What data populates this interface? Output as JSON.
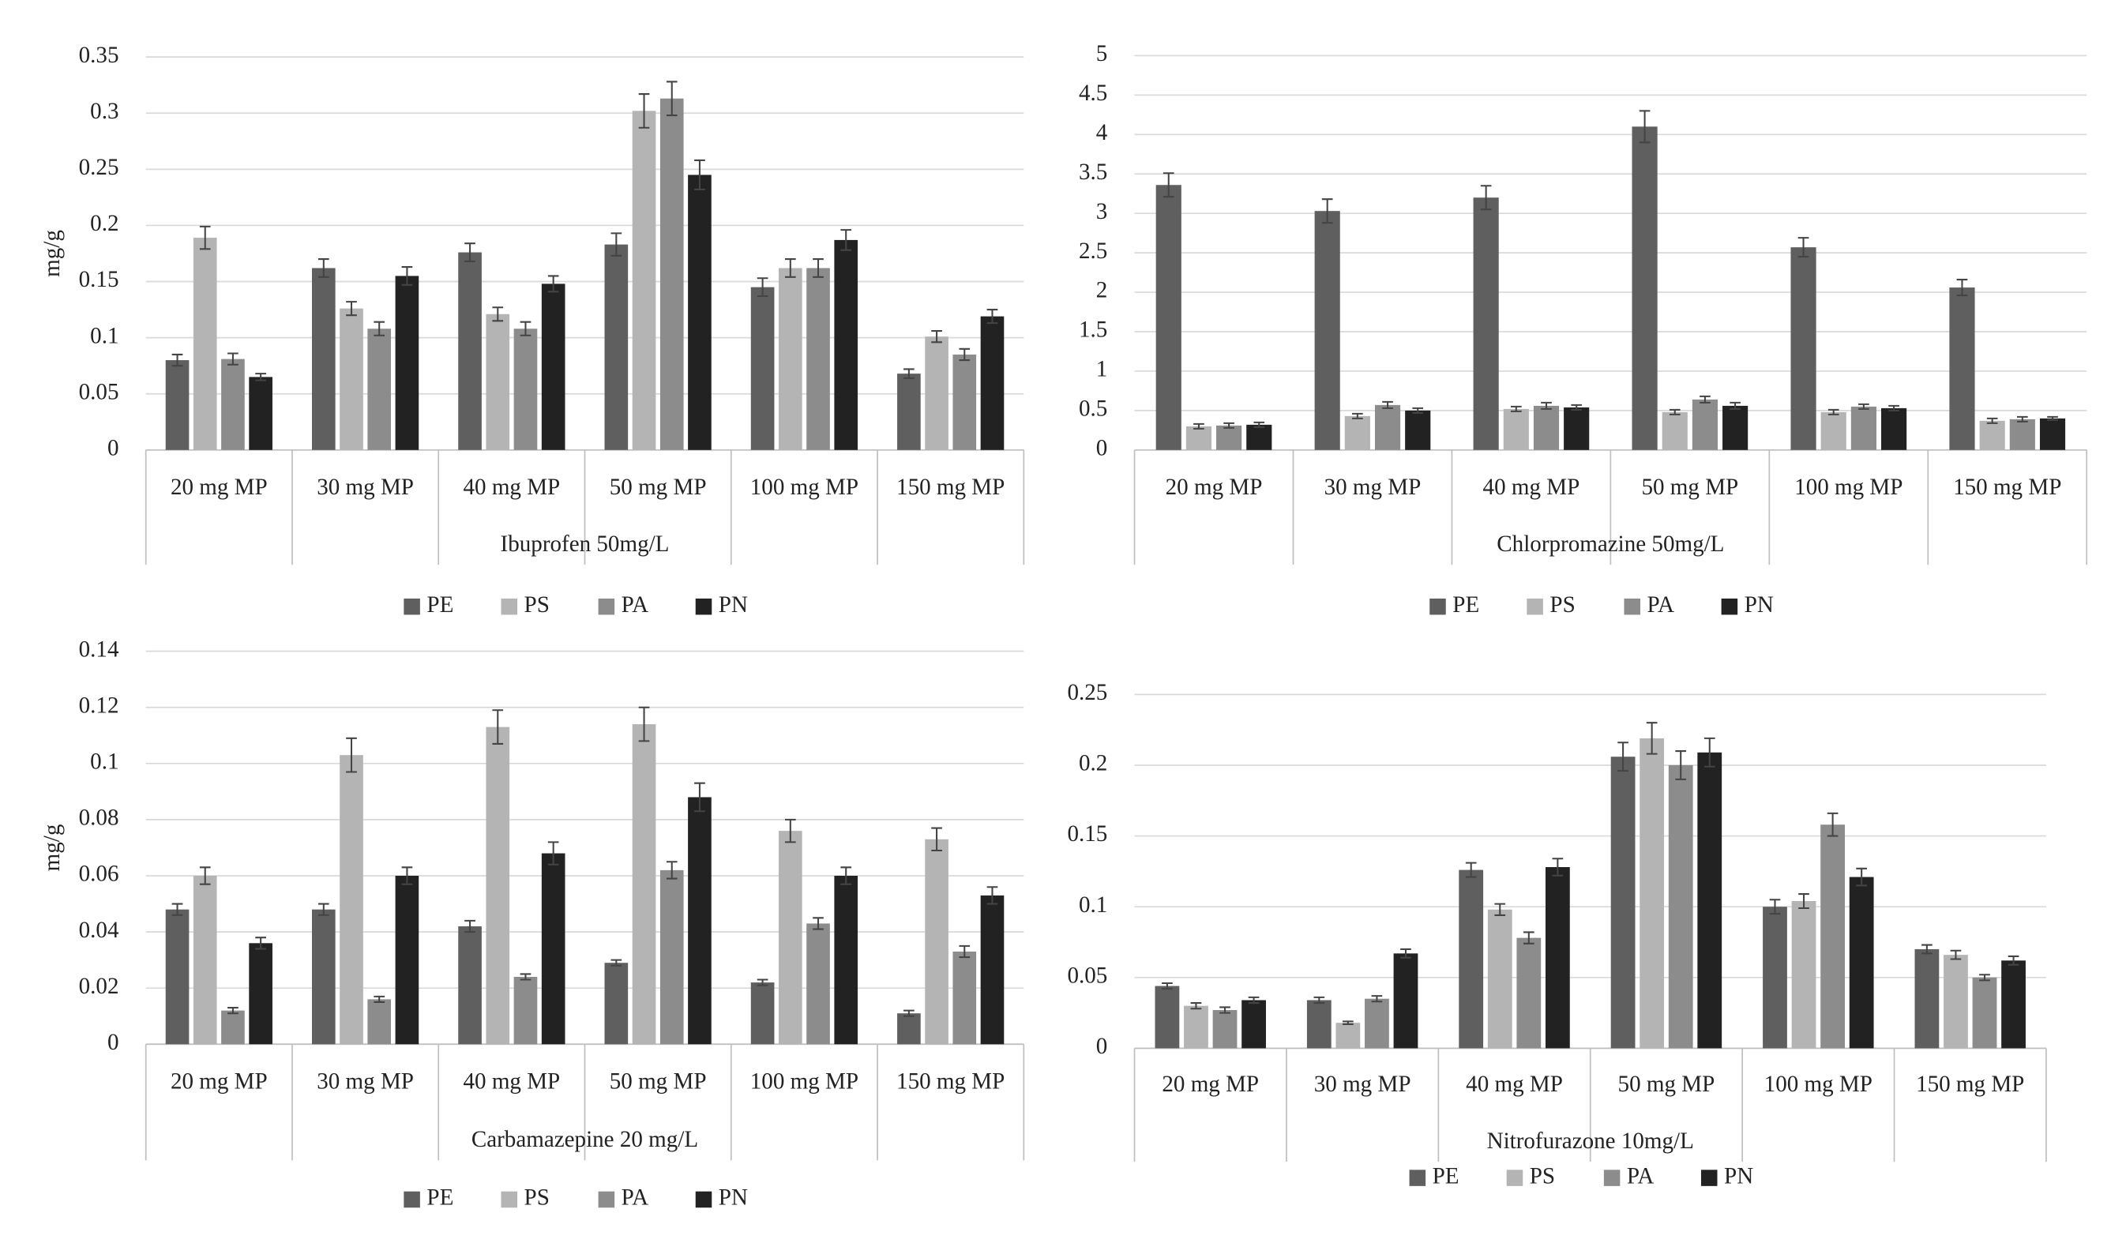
{
  "chart_data": [
    {
      "type": "bar",
      "x_label": "Ibuprofen 50mg/L",
      "y_label": "mg/g",
      "categories": [
        "20 mg MP",
        "30 mg MP",
        "40 mg MP",
        "50 mg MP",
        "100 mg MP",
        "150 mg MP"
      ],
      "ylim": [
        0,
        0.35
      ],
      "yticks": [
        0,
        0.05,
        0.1,
        0.15,
        0.2,
        0.25,
        0.3,
        0.35
      ],
      "grid": true,
      "legend": "bottom",
      "series": [
        {
          "name": "PE",
          "color": "#5f5f5f",
          "values": [
            0.08,
            0.162,
            0.176,
            0.183,
            0.145,
            0.068
          ],
          "errors": [
            0.005,
            0.008,
            0.008,
            0.01,
            0.008,
            0.004
          ]
        },
        {
          "name": "PS",
          "color": "#b4b4b4",
          "values": [
            0.189,
            0.126,
            0.121,
            0.302,
            0.162,
            0.101
          ],
          "errors": [
            0.01,
            0.006,
            0.006,
            0.015,
            0.008,
            0.005
          ]
        },
        {
          "name": "PA",
          "color": "#8c8c8c",
          "values": [
            0.081,
            0.108,
            0.108,
            0.313,
            0.162,
            0.085
          ],
          "errors": [
            0.005,
            0.006,
            0.006,
            0.015,
            0.008,
            0.005
          ]
        },
        {
          "name": "PN",
          "color": "#222222",
          "values": [
            0.065,
            0.155,
            0.148,
            0.245,
            0.187,
            0.119
          ],
          "errors": [
            0.003,
            0.008,
            0.007,
            0.013,
            0.009,
            0.006
          ]
        }
      ]
    },
    {
      "type": "bar",
      "x_label": "Chlorpromazine 50mg/L",
      "categories": [
        "20 mg MP",
        "30 mg MP",
        "40 mg MP",
        "50 mg MP",
        "100 mg MP",
        "150 mg MP"
      ],
      "ylim": [
        0,
        5
      ],
      "yticks": [
        0,
        0.5,
        1,
        1.5,
        2,
        2.5,
        3,
        3.5,
        4,
        4.5,
        5
      ],
      "grid": true,
      "legend": "bottom",
      "series": [
        {
          "name": "PE",
          "color": "#5f5f5f",
          "values": [
            3.36,
            3.03,
            3.2,
            4.1,
            2.57,
            2.06
          ],
          "errors": [
            0.15,
            0.15,
            0.15,
            0.2,
            0.12,
            0.1
          ]
        },
        {
          "name": "PS",
          "color": "#b4b4b4",
          "values": [
            0.3,
            0.43,
            0.52,
            0.48,
            0.48,
            0.37
          ],
          "errors": [
            0.03,
            0.03,
            0.03,
            0.03,
            0.03,
            0.03
          ]
        },
        {
          "name": "PA",
          "color": "#8c8c8c",
          "values": [
            0.31,
            0.57,
            0.56,
            0.64,
            0.55,
            0.39
          ],
          "errors": [
            0.03,
            0.04,
            0.04,
            0.04,
            0.03,
            0.03
          ]
        },
        {
          "name": "PN",
          "color": "#222222",
          "values": [
            0.32,
            0.5,
            0.54,
            0.56,
            0.53,
            0.4
          ],
          "errors": [
            0.03,
            0.03,
            0.03,
            0.04,
            0.03,
            0.02
          ]
        }
      ]
    },
    {
      "type": "bar",
      "x_label": "Carbamazepine 20 mg/L",
      "y_label": "mg/g",
      "categories": [
        "20 mg MP",
        "30 mg MP",
        "40 mg MP",
        "50 mg MP",
        "100 mg MP",
        "150 mg MP"
      ],
      "ylim": [
        0,
        0.14
      ],
      "yticks": [
        0,
        0.02,
        0.04,
        0.06,
        0.08,
        0.1,
        0.12,
        0.14
      ],
      "grid": true,
      "legend": "bottom",
      "series": [
        {
          "name": "PE",
          "color": "#5f5f5f",
          "values": [
            0.048,
            0.048,
            0.042,
            0.029,
            0.022,
            0.011
          ],
          "errors": [
            0.002,
            0.002,
            0.002,
            0.001,
            0.001,
            0.001
          ]
        },
        {
          "name": "PS",
          "color": "#b4b4b4",
          "values": [
            0.06,
            0.103,
            0.113,
            0.114,
            0.076,
            0.073
          ],
          "errors": [
            0.003,
            0.006,
            0.006,
            0.006,
            0.004,
            0.004
          ]
        },
        {
          "name": "PA",
          "color": "#8c8c8c",
          "values": [
            0.012,
            0.016,
            0.024,
            0.062,
            0.043,
            0.033
          ],
          "errors": [
            0.001,
            0.001,
            0.001,
            0.003,
            0.002,
            0.002
          ]
        },
        {
          "name": "PN",
          "color": "#222222",
          "values": [
            0.036,
            0.06,
            0.068,
            0.088,
            0.06,
            0.053
          ],
          "errors": [
            0.002,
            0.003,
            0.004,
            0.005,
            0.003,
            0.003
          ]
        }
      ]
    },
    {
      "type": "bar",
      "x_label": "Nitrofurazone 10mg/L",
      "categories": [
        "20 mg MP",
        "30 mg MP",
        "40 mg MP",
        "50 mg MP",
        "100 mg MP",
        "150 mg MP"
      ],
      "ylim": [
        0,
        0.25
      ],
      "yticks": [
        0,
        0.05,
        0.1,
        0.15,
        0.2,
        0.25
      ],
      "grid": true,
      "legend": "bottom",
      "series": [
        {
          "name": "PE",
          "color": "#5f5f5f",
          "values": [
            0.044,
            0.034,
            0.126,
            0.206,
            0.1,
            0.07
          ],
          "errors": [
            0.002,
            0.002,
            0.005,
            0.01,
            0.005,
            0.003
          ]
        },
        {
          "name": "PS",
          "color": "#b4b4b4",
          "values": [
            0.03,
            0.018,
            0.098,
            0.219,
            0.104,
            0.066
          ],
          "errors": [
            0.002,
            0.001,
            0.004,
            0.011,
            0.005,
            0.003
          ]
        },
        {
          "name": "PA",
          "color": "#8c8c8c",
          "values": [
            0.027,
            0.035,
            0.078,
            0.2,
            0.158,
            0.05
          ],
          "errors": [
            0.002,
            0.002,
            0.004,
            0.01,
            0.008,
            0.002
          ]
        },
        {
          "name": "PN",
          "color": "#222222",
          "values": [
            0.034,
            0.067,
            0.128,
            0.209,
            0.121,
            0.062
          ],
          "errors": [
            0.002,
            0.003,
            0.006,
            0.01,
            0.006,
            0.003
          ]
        }
      ]
    }
  ]
}
